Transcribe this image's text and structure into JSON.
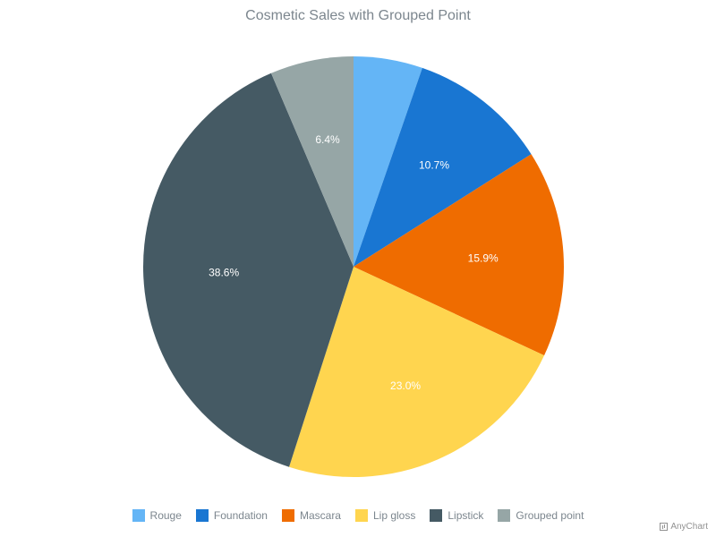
{
  "chart_data": {
    "type": "pie",
    "title": "Cosmetic Sales with Grouped Point",
    "series": [
      {
        "name": "Rouge",
        "value": 5.3,
        "color": "#64b5f6"
      },
      {
        "name": "Foundation",
        "value": 10.7,
        "label": "10.7%",
        "color": "#1976d2"
      },
      {
        "name": "Mascara",
        "value": 15.9,
        "label": "15.9%",
        "color": "#ef6c00"
      },
      {
        "name": "Lip gloss",
        "value": 23.0,
        "label": "23.0%",
        "color": "#ffd54f"
      },
      {
        "name": "Lipstick",
        "value": 38.6,
        "label": "38.6%",
        "color": "#455a64"
      },
      {
        "name": "Grouped point",
        "value": 6.4,
        "label": "6.4%",
        "color": "#96a6a6"
      }
    ],
    "legend_position": "bottom"
  },
  "credits": "AnyChart"
}
